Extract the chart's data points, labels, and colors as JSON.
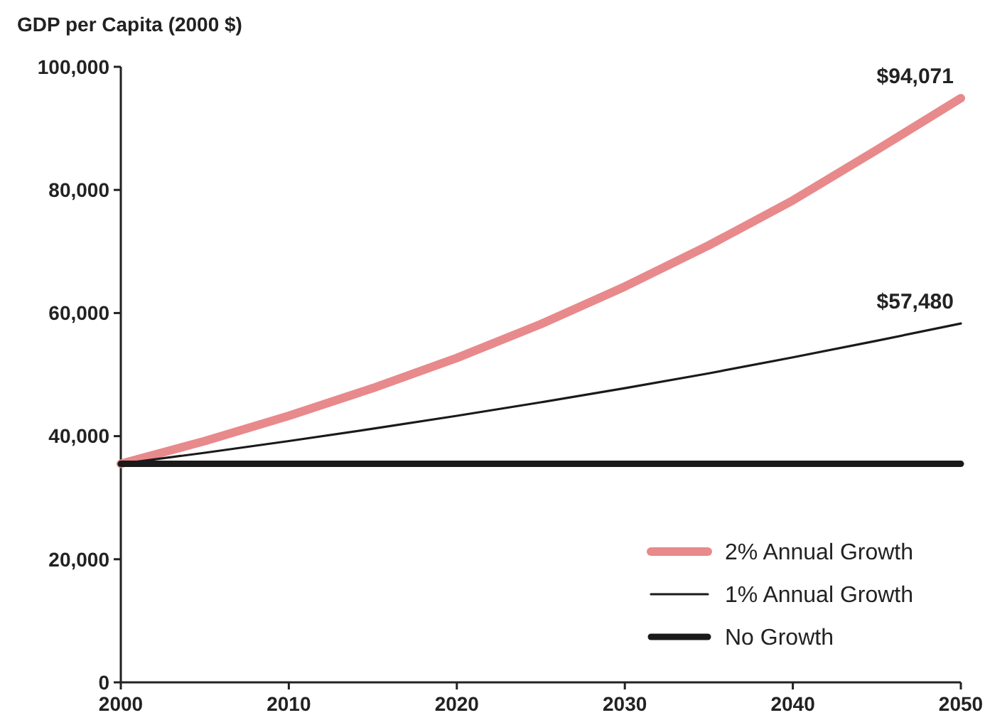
{
  "chart_data": {
    "type": "line",
    "ylabel": "GDP per Capita (2000 $)",
    "x": [
      2000,
      2005,
      2010,
      2015,
      2020,
      2025,
      2030,
      2035,
      2040,
      2045,
      2050
    ],
    "series": [
      {
        "name": "2% Annual Growth",
        "color": "#e8898b",
        "values": [
          35500,
          39200,
          43300,
          47800,
          52700,
          58200,
          64300,
          71000,
          78300,
          86500,
          94900
        ]
      },
      {
        "name": "1% Annual Growth",
        "color": "#1a1a1a",
        "values": [
          35500,
          37300,
          39200,
          41200,
          43300,
          45500,
          47800,
          50200,
          52800,
          55500,
          58300
        ]
      },
      {
        "name": "No Growth",
        "color": "#1a1a1a",
        "values": [
          35500,
          35500,
          35500,
          35500,
          35500,
          35500,
          35500,
          35500,
          35500,
          35500,
          35500
        ]
      }
    ],
    "xlim": [
      2000,
      2050
    ],
    "xticks": [
      2000,
      2010,
      2020,
      2030,
      2040,
      2050
    ],
    "ylim": [
      0,
      100000
    ],
    "yticks": [
      {
        "value": 0,
        "label": "0"
      },
      {
        "value": 20000,
        "label": "20,000"
      },
      {
        "value": 40000,
        "label": "40,000"
      },
      {
        "value": 60000,
        "label": "60,000"
      },
      {
        "value": 80000,
        "label": "80,000"
      },
      {
        "value": 100000,
        "label": "100,000"
      }
    ],
    "annotations": [
      {
        "text": "$94,071",
        "x": 2050,
        "y": 94071
      },
      {
        "text": "$57,480",
        "x": 2050,
        "y": 57480
      }
    ],
    "legend": "bottom right",
    "grid": false,
    "marker": "none",
    "line_style": "solid"
  }
}
